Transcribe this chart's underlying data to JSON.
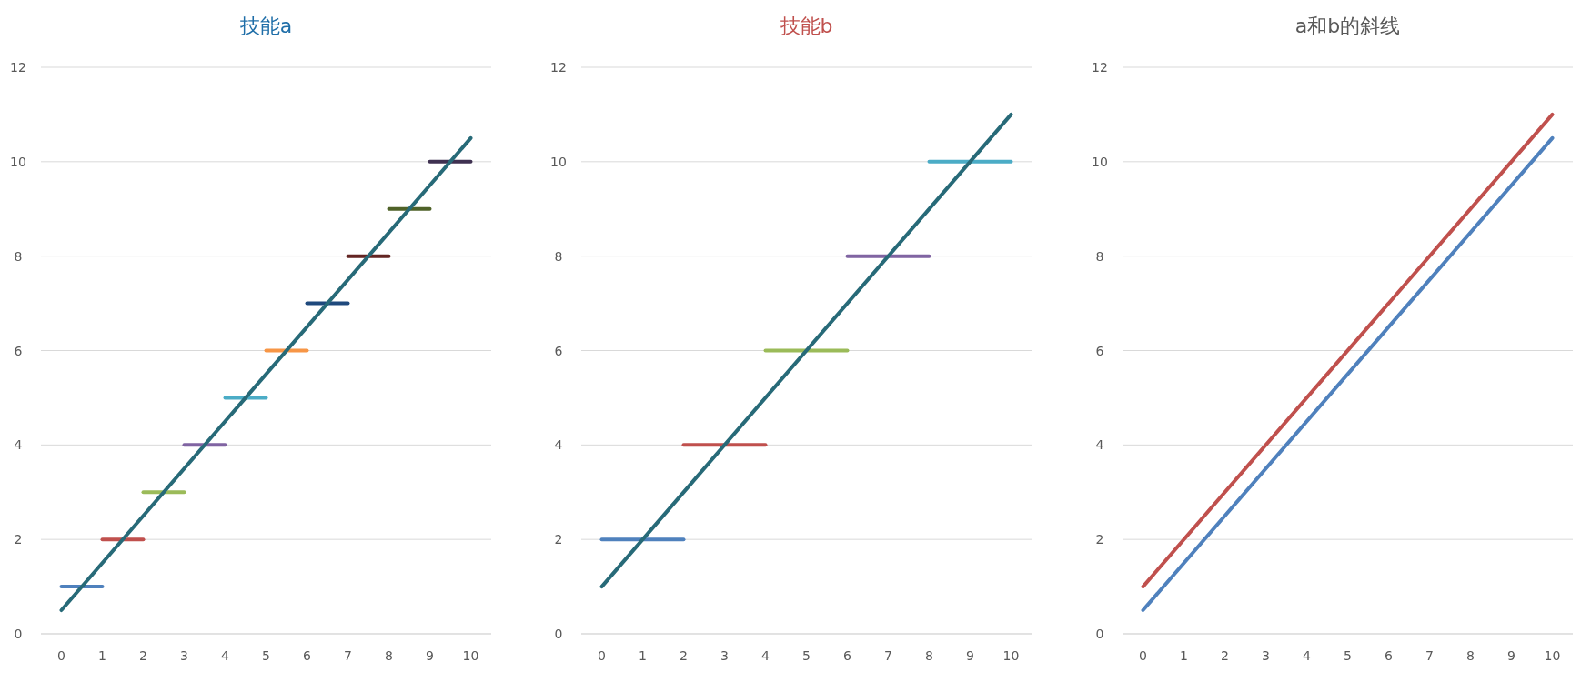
{
  "chart_data": [
    {
      "type": "line",
      "title": "技能a",
      "xlim": [
        -0.5,
        10.5
      ],
      "xticks": [
        0,
        1,
        2,
        3,
        4,
        5,
        6,
        7,
        8,
        9,
        10
      ],
      "ylim": [
        0,
        12
      ],
      "yticks": [
        0,
        2,
        4,
        6,
        8,
        10,
        12
      ],
      "grid": "y",
      "marker": "none",
      "line_style": "solid",
      "series": [
        {
          "color": "#4f81bd",
          "x": [
            0,
            1
          ],
          "values": [
            1,
            1
          ]
        },
        {
          "color": "#c0504d",
          "x": [
            1,
            2
          ],
          "values": [
            2,
            2
          ]
        },
        {
          "color": "#9bbb59",
          "x": [
            2,
            3
          ],
          "values": [
            3,
            3
          ]
        },
        {
          "color": "#8064a2",
          "x": [
            3,
            4
          ],
          "values": [
            4,
            4
          ]
        },
        {
          "color": "#4bacc6",
          "x": [
            4,
            5
          ],
          "values": [
            5,
            5
          ]
        },
        {
          "color": "#f79646",
          "x": [
            5,
            6
          ],
          "values": [
            6,
            6
          ]
        },
        {
          "color": "#1f497d",
          "x": [
            6,
            7
          ],
          "values": [
            7,
            7
          ]
        },
        {
          "color": "#632523",
          "x": [
            7,
            8
          ],
          "values": [
            8,
            8
          ]
        },
        {
          "color": "#4f6228",
          "x": [
            8,
            9
          ],
          "values": [
            9,
            9
          ]
        },
        {
          "color": "#3f3151",
          "x": [
            9,
            10
          ],
          "values": [
            10,
            10
          ]
        },
        {
          "color": "#276a78",
          "x": [
            0,
            10
          ],
          "values": [
            0.5,
            10.5
          ]
        }
      ]
    },
    {
      "type": "line",
      "title": "技能b",
      "xlim": [
        -0.5,
        10.5
      ],
      "xticks": [
        0,
        1,
        2,
        3,
        4,
        5,
        6,
        7,
        8,
        9,
        10
      ],
      "ylim": [
        0,
        12
      ],
      "yticks": [
        0,
        2,
        4,
        6,
        8,
        10,
        12
      ],
      "grid": "y",
      "marker": "none",
      "line_style": "solid",
      "series": [
        {
          "color": "#4f81bd",
          "x": [
            0,
            2
          ],
          "values": [
            2,
            2
          ]
        },
        {
          "color": "#c0504d",
          "x": [
            2,
            4
          ],
          "values": [
            4,
            4
          ]
        },
        {
          "color": "#9bbb59",
          "x": [
            4,
            6
          ],
          "values": [
            6,
            6
          ]
        },
        {
          "color": "#8064a2",
          "x": [
            6,
            8
          ],
          "values": [
            8,
            8
          ]
        },
        {
          "color": "#4bacc6",
          "x": [
            8,
            10
          ],
          "values": [
            10,
            10
          ]
        },
        {
          "color": "#276a78",
          "x": [
            0,
            10
          ],
          "values": [
            1,
            11
          ]
        }
      ]
    },
    {
      "type": "line",
      "title": "a和b的斜线",
      "xlim": [
        -0.5,
        10.5
      ],
      "xticks": [
        0,
        1,
        2,
        3,
        4,
        5,
        6,
        7,
        8,
        9,
        10
      ],
      "ylim": [
        0,
        12
      ],
      "yticks": [
        0,
        2,
        4,
        6,
        8,
        10,
        12
      ],
      "grid": "y",
      "marker": "none",
      "line_style": "solid",
      "series": [
        {
          "color": "#c0504d",
          "x": [
            0,
            10
          ],
          "values": [
            1,
            11
          ]
        },
        {
          "color": "#4f81bd",
          "x": [
            0,
            10
          ],
          "values": [
            0.5,
            10.5
          ]
        }
      ]
    }
  ]
}
